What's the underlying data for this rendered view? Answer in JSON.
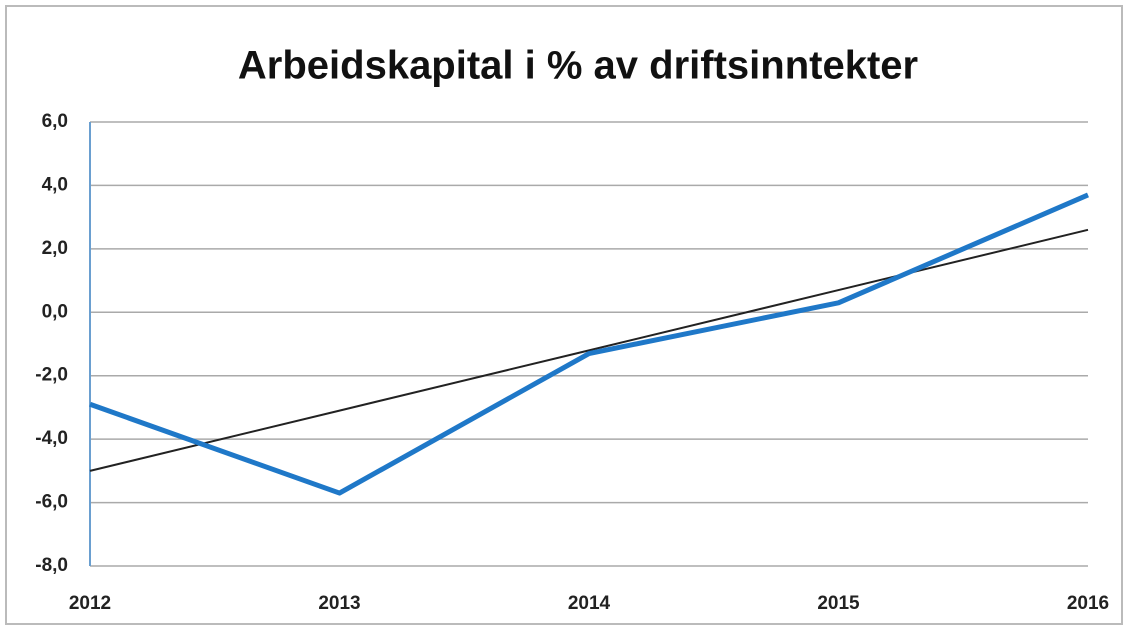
{
  "chart_data": {
    "type": "line",
    "title": "Arbeidskapital i % av driftsinntekter",
    "categories": [
      "2012",
      "2013",
      "2014",
      "2015",
      "2016"
    ],
    "series": [
      {
        "color": "#1f78c8",
        "values": [
          -2.9,
          -5.7,
          -1.3,
          0.3,
          3.7
        ]
      },
      {
        "color": "#222222",
        "values": [
          -5.0,
          -3.1,
          -1.2,
          0.7,
          2.6
        ]
      }
    ],
    "ylim": [
      -8,
      6
    ],
    "yticks": [
      {
        "value": -8,
        "label": "-8,0"
      },
      {
        "value": -6,
        "label": "-6,0"
      },
      {
        "value": -4,
        "label": "-4,0"
      },
      {
        "value": -2,
        "label": "-2,0"
      },
      {
        "value": 0,
        "label": "0,0"
      },
      {
        "value": 2,
        "label": "2,0"
      },
      {
        "value": 4,
        "label": "4,0"
      },
      {
        "value": 6,
        "label": "6,0"
      }
    ],
    "grid": true
  }
}
